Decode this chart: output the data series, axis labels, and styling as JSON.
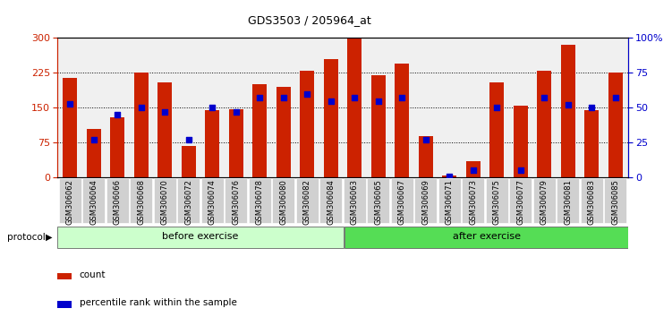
{
  "title": "GDS3503 / 205964_at",
  "samples": [
    "GSM306062",
    "GSM306064",
    "GSM306066",
    "GSM306068",
    "GSM306070",
    "GSM306072",
    "GSM306074",
    "GSM306076",
    "GSM306078",
    "GSM306080",
    "GSM306082",
    "GSM306084",
    "GSM306063",
    "GSM306065",
    "GSM306067",
    "GSM306069",
    "GSM306071",
    "GSM306073",
    "GSM306075",
    "GSM306077",
    "GSM306079",
    "GSM306081",
    "GSM306083",
    "GSM306085"
  ],
  "counts": [
    215,
    105,
    130,
    225,
    205,
    68,
    145,
    147,
    200,
    195,
    230,
    255,
    300,
    220,
    245,
    90,
    5,
    35,
    205,
    155,
    230,
    285,
    145,
    225
  ],
  "percentiles": [
    53,
    27,
    45,
    50,
    47,
    27,
    50,
    47,
    57,
    57,
    60,
    55,
    57,
    55,
    57,
    27,
    1,
    5,
    50,
    5,
    57,
    52,
    50,
    57
  ],
  "before_exercise_count": 12,
  "left_ylim": [
    0,
    300
  ],
  "right_ylim": [
    0,
    100
  ],
  "left_yticks": [
    0,
    75,
    150,
    225,
    300
  ],
  "right_yticks": [
    0,
    25,
    50,
    75,
    100
  ],
  "right_yticklabels": [
    "0",
    "25",
    "50",
    "75",
    "100%"
  ],
  "bar_color": "#cc2200",
  "pct_color": "#0000cc",
  "before_color": "#ccffcc",
  "after_color": "#55dd55",
  "protocol_label": "protocol",
  "before_label": "before exercise",
  "after_label": "after exercise",
  "legend_count": "count",
  "legend_pct": "percentile rank within the sample",
  "plot_bg": "#f0f0f0",
  "tick_bg": "#d0d0d0"
}
